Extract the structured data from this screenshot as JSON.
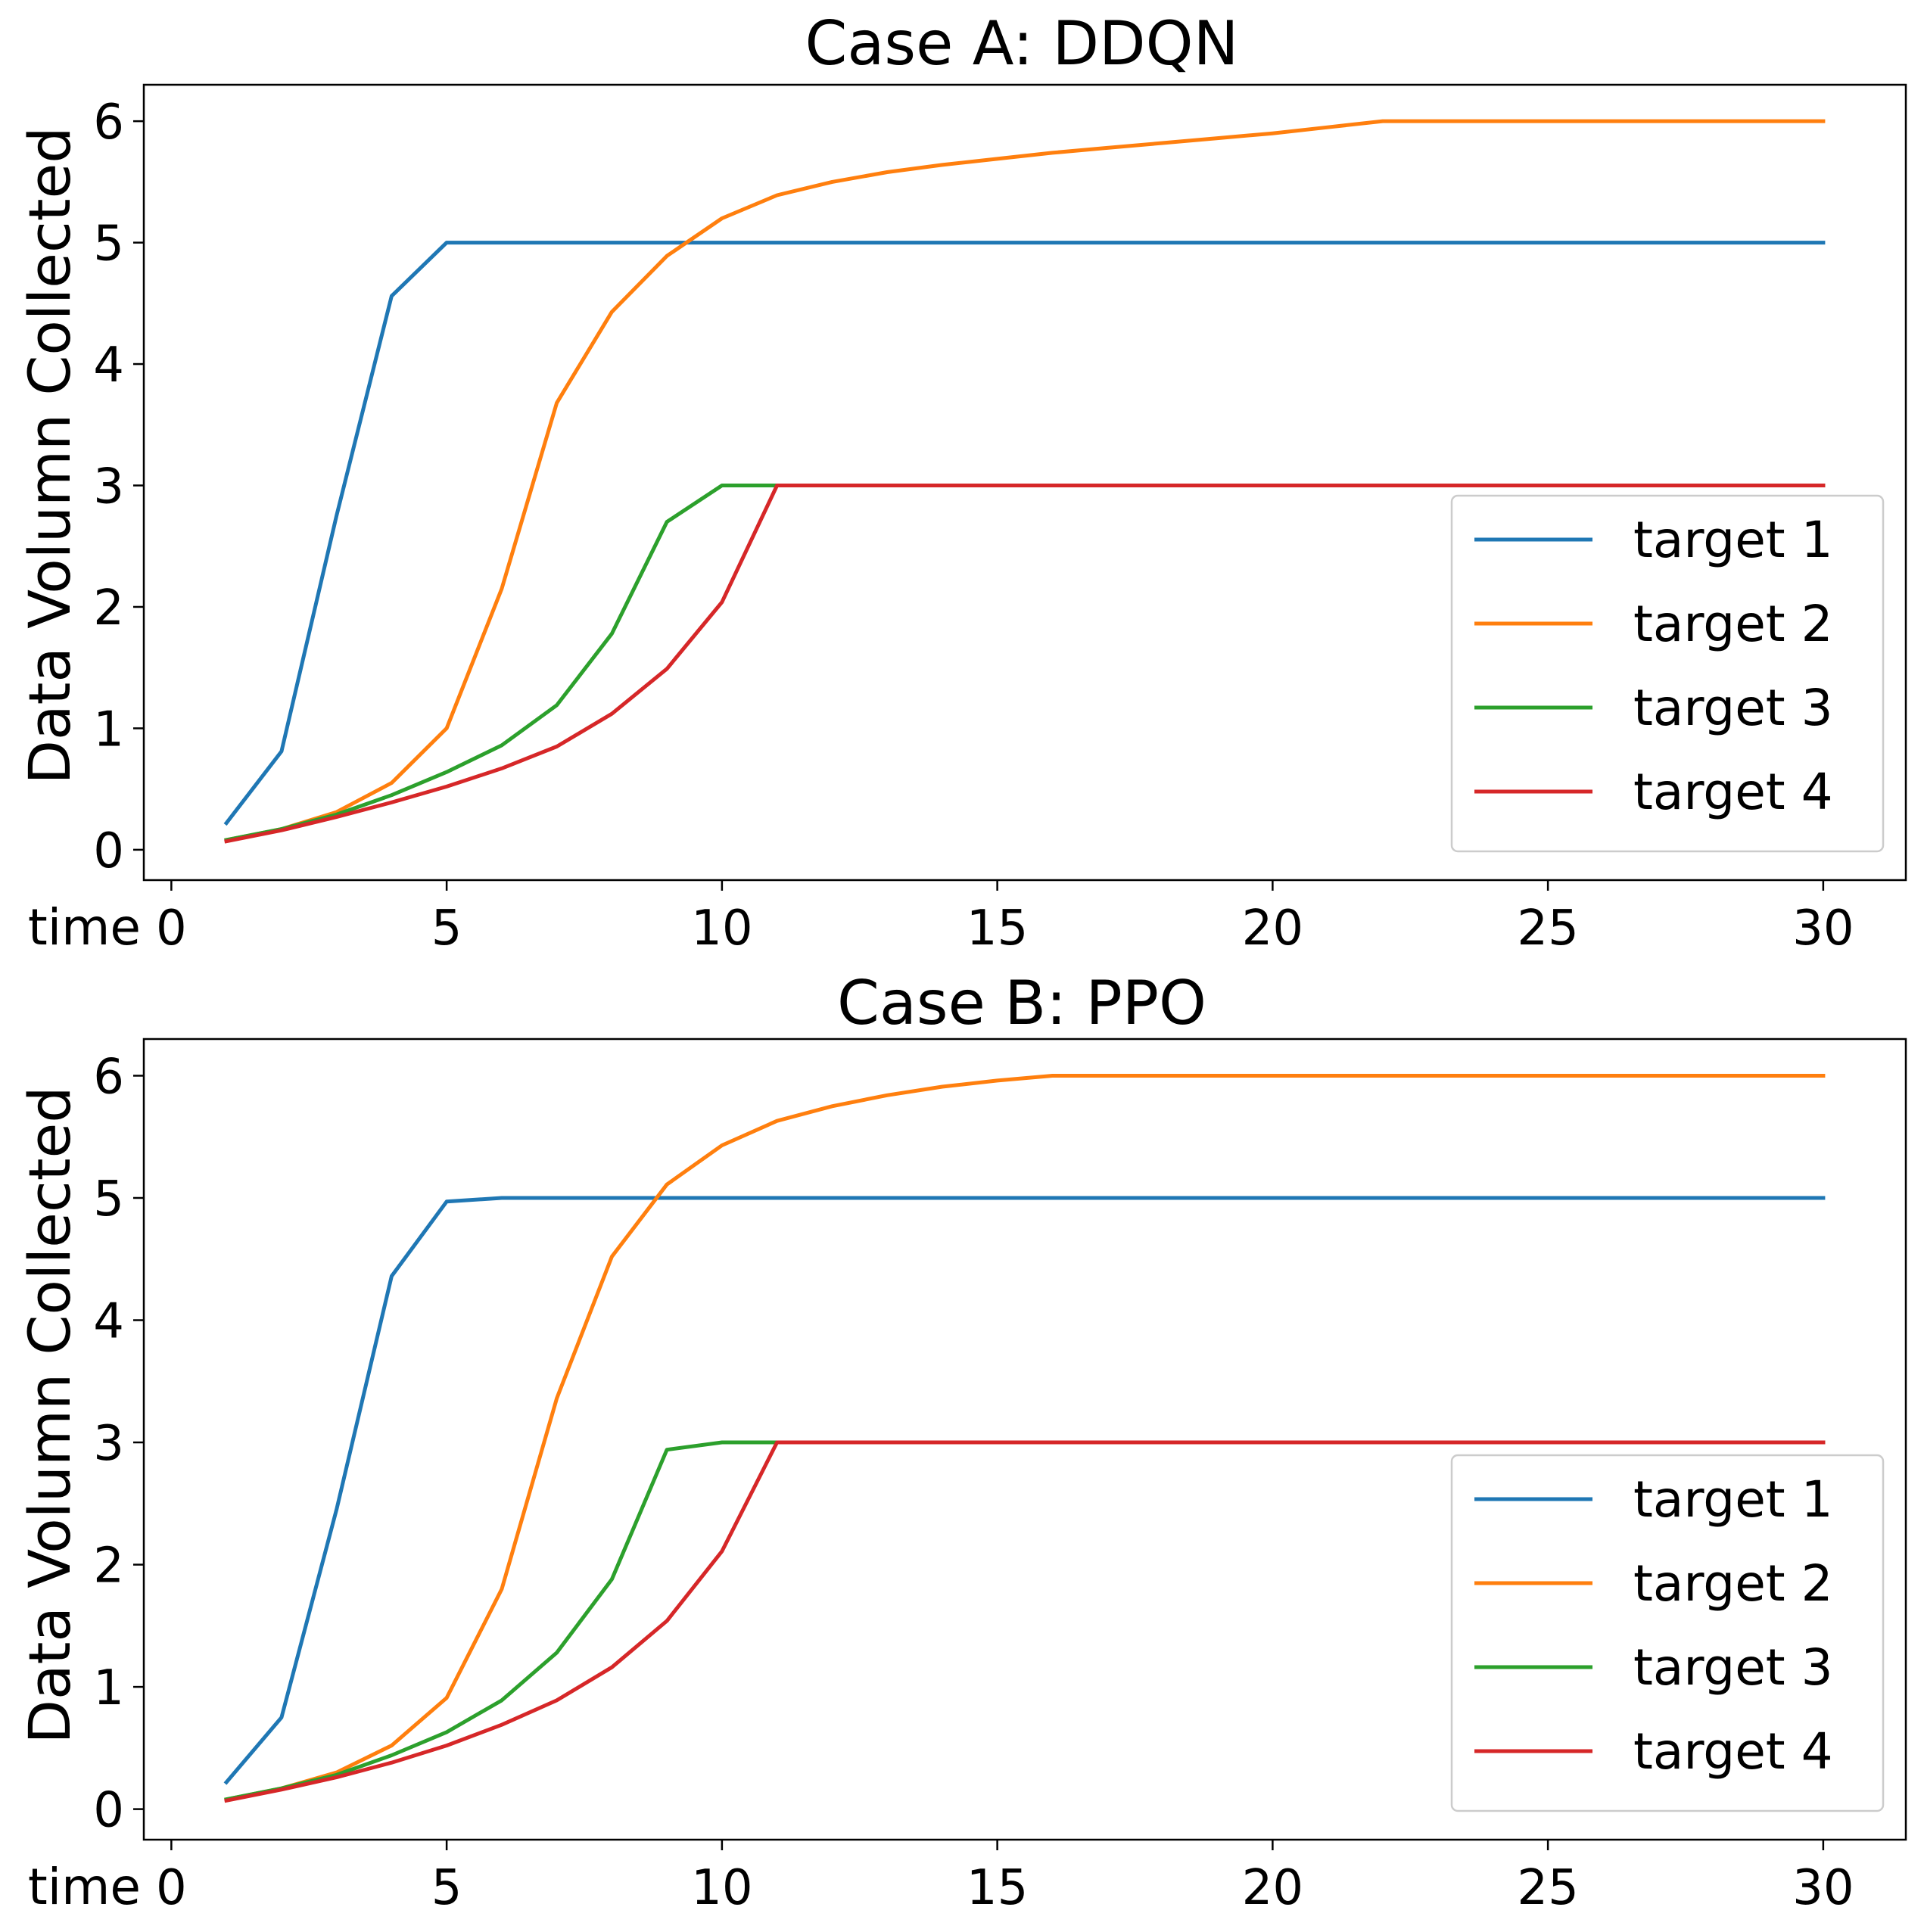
{
  "chart_data": [
    {
      "type": "line",
      "title": "Case A: DDQN",
      "xlabel": "time",
      "ylabel": "Data Volumn Collected",
      "xlim": [
        -0.5,
        31.5
      ],
      "ylim": [
        -0.25,
        6.3
      ],
      "xticks": [
        "0",
        "5",
        "10",
        "15",
        "20",
        "25",
        "30"
      ],
      "yticks": [
        "0",
        "1",
        "2",
        "3",
        "4",
        "5",
        "6"
      ],
      "grid": false,
      "legend_position": "lower-right",
      "x": [
        1,
        2,
        3,
        4,
        5,
        6,
        7,
        8,
        9,
        10,
        11,
        12,
        13,
        14,
        15,
        16,
        17,
        18,
        19,
        20,
        21,
        22,
        23,
        24,
        25,
        26,
        27,
        28,
        29,
        30
      ],
      "series": [
        {
          "name": "target 1",
          "color": "#1f77b4",
          "values": [
            0.22,
            0.81,
            2.75,
            4.56,
            5,
            5,
            5,
            5,
            5,
            5,
            5,
            5,
            5,
            5,
            5,
            5,
            5,
            5,
            5,
            5,
            5,
            5,
            5,
            5,
            5,
            5,
            5,
            5,
            5,
            5
          ]
        },
        {
          "name": "target 2",
          "color": "#ff7f0e",
          "values": [
            0.08,
            0.17,
            0.31,
            0.55,
            1.0,
            2.15,
            3.68,
            4.43,
            4.89,
            5.2,
            5.39,
            5.5,
            5.58,
            5.64,
            5.69,
            5.74,
            5.78,
            5.82,
            5.86,
            5.9,
            5.95,
            6.0,
            6.0,
            6.0,
            6.0,
            6.0,
            6.0,
            6.0,
            6.0,
            6.0
          ]
        },
        {
          "name": "target 3",
          "color": "#2ca02c",
          "values": [
            0.08,
            0.17,
            0.29,
            0.45,
            0.64,
            0.86,
            1.19,
            1.78,
            2.7,
            3.0,
            3.0,
            3.0,
            3.0,
            3.0,
            3.0,
            3.0,
            3.0,
            3.0,
            3.0,
            3.0,
            3.0,
            3.0,
            3.0,
            3.0,
            3.0,
            3.0,
            3.0,
            3.0,
            3.0,
            3.0
          ]
        },
        {
          "name": "target 4",
          "color": "#d62728",
          "values": [
            0.07,
            0.16,
            0.27,
            0.39,
            0.52,
            0.67,
            0.85,
            1.12,
            1.49,
            2.04,
            3.0,
            3.0,
            3.0,
            3.0,
            3.0,
            3.0,
            3.0,
            3.0,
            3.0,
            3.0,
            3.0,
            3.0,
            3.0,
            3.0,
            3.0,
            3.0,
            3.0,
            3.0,
            3.0,
            3.0
          ]
        }
      ]
    },
    {
      "type": "line",
      "title": "Case B: PPO",
      "xlabel": "time",
      "ylabel": "Data Volumn Collected",
      "xlim": [
        -0.5,
        31.5
      ],
      "ylim": [
        -0.25,
        6.3
      ],
      "xticks": [
        "0",
        "5",
        "10",
        "15",
        "20",
        "25",
        "30"
      ],
      "yticks": [
        "0",
        "1",
        "2",
        "3",
        "4",
        "5",
        "6"
      ],
      "grid": false,
      "legend_position": "lower-right",
      "x": [
        1,
        2,
        3,
        4,
        5,
        6,
        7,
        8,
        9,
        10,
        11,
        12,
        13,
        14,
        15,
        16,
        17,
        18,
        19,
        20,
        21,
        22,
        23,
        24,
        25,
        26,
        27,
        28,
        29,
        30
      ],
      "series": [
        {
          "name": "target 1",
          "color": "#1f77b4",
          "values": [
            0.22,
            0.75,
            2.45,
            4.36,
            4.97,
            5,
            5,
            5,
            5,
            5,
            5,
            5,
            5,
            5,
            5,
            5,
            5,
            5,
            5,
            5,
            5,
            5,
            5,
            5,
            5,
            5,
            5,
            5,
            5,
            5
          ]
        },
        {
          "name": "target 2",
          "color": "#ff7f0e",
          "values": [
            0.08,
            0.17,
            0.3,
            0.52,
            0.91,
            1.8,
            3.36,
            4.52,
            5.11,
            5.43,
            5.63,
            5.75,
            5.84,
            5.91,
            5.96,
            6.0,
            6.0,
            6.0,
            6.0,
            6.0,
            6.0,
            6.0,
            6.0,
            6.0,
            6.0,
            6.0,
            6.0,
            6.0,
            6.0,
            6.0
          ]
        },
        {
          "name": "target 3",
          "color": "#2ca02c",
          "values": [
            0.08,
            0.17,
            0.28,
            0.44,
            0.63,
            0.89,
            1.28,
            1.88,
            2.94,
            3.0,
            3.0,
            3.0,
            3.0,
            3.0,
            3.0,
            3.0,
            3.0,
            3.0,
            3.0,
            3.0,
            3.0,
            3.0,
            3.0,
            3.0,
            3.0,
            3.0,
            3.0,
            3.0,
            3.0,
            3.0
          ]
        },
        {
          "name": "target 4",
          "color": "#d62728",
          "values": [
            0.07,
            0.16,
            0.26,
            0.38,
            0.52,
            0.69,
            0.89,
            1.16,
            1.54,
            2.11,
            3.0,
            3.0,
            3.0,
            3.0,
            3.0,
            3.0,
            3.0,
            3.0,
            3.0,
            3.0,
            3.0,
            3.0,
            3.0,
            3.0,
            3.0,
            3.0,
            3.0,
            3.0,
            3.0,
            3.0
          ]
        }
      ]
    }
  ]
}
